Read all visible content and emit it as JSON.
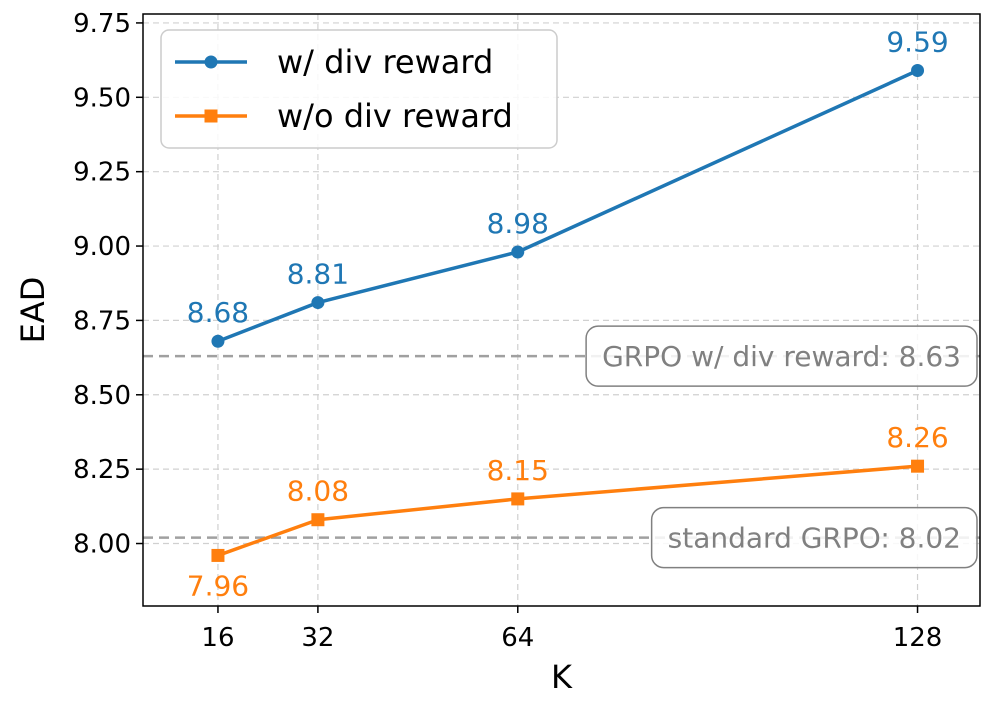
{
  "chart_data": {
    "type": "line",
    "xlabel": "K",
    "ylabel": "EAD",
    "x": [
      16,
      32,
      64,
      128
    ],
    "xticks": [
      "16",
      "32",
      "64",
      "128"
    ],
    "xlim": [
      4,
      138
    ],
    "ylim": [
      7.79,
      9.78
    ],
    "yticks": [
      "8.00",
      "8.25",
      "8.50",
      "8.75",
      "9.00",
      "9.25",
      "9.50",
      "9.75"
    ],
    "grid": true,
    "legend_position": "top-left",
    "series": [
      {
        "name": "w/ div reward",
        "color": "#1f77b4",
        "marker": "circle",
        "values": [
          8.68,
          8.81,
          8.98,
          9.59
        ],
        "labels": [
          "8.68",
          "8.81",
          "8.98",
          "9.59"
        ],
        "label_position": "above"
      },
      {
        "name": "w/o div reward",
        "color": "#ff7f0e",
        "marker": "square",
        "values": [
          7.96,
          8.08,
          8.15,
          8.26
        ],
        "labels": [
          "7.96",
          "8.08",
          "8.15",
          "8.26"
        ],
        "label_position": [
          "below",
          "above",
          "above",
          "above"
        ]
      }
    ],
    "reference_lines": [
      {
        "label": "GRPO w/ div reward: 8.63",
        "value": 8.63,
        "color": "#a0a0a0",
        "style": "dashed"
      },
      {
        "label": "standard GRPO: 8.02",
        "value": 8.02,
        "color": "#a0a0a0",
        "style": "dashed"
      }
    ]
  }
}
